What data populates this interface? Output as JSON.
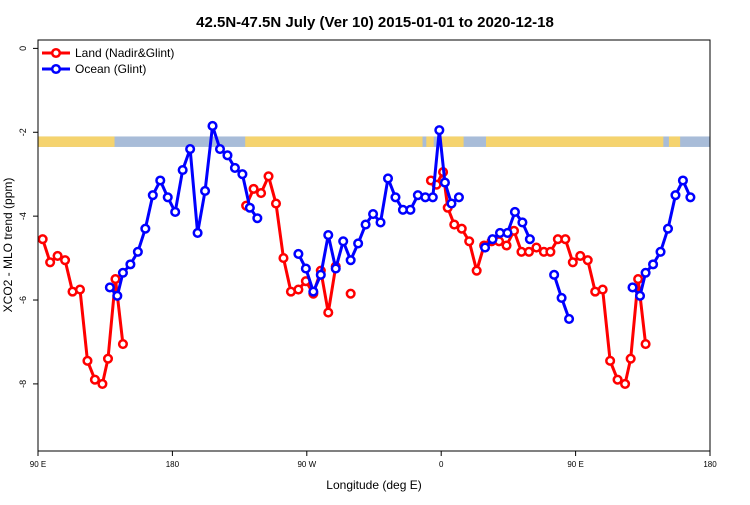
{
  "chart_data": {
    "type": "line",
    "title": "42.5N-47.5N July (Ver 10)   2015-01-01 to 2020-12-18",
    "xlabel": "Longitude (deg E)",
    "ylabel": "XCO2 - MLO trend (ppm)",
    "xlim": [
      90,
      450
    ],
    "ylim": [
      -9.6,
      0.2
    ],
    "grid": false,
    "legend_position": "top-left",
    "x_ticks": [
      {
        "value": 90,
        "label": "90 E"
      },
      {
        "value": 162,
        "label": "180"
      },
      {
        "value": 234,
        "label": "90 W"
      },
      {
        "value": 306,
        "label": "0"
      },
      {
        "value": 378,
        "label": "90 E"
      },
      {
        "value": 450,
        "label": "180"
      }
    ],
    "y_ticks": [
      {
        "value": 0,
        "label": "0"
      },
      {
        "value": -2,
        "label": "-2"
      },
      {
        "value": -4,
        "label": "-4"
      },
      {
        "value": -6,
        "label": "-6"
      },
      {
        "value": -8,
        "label": "-8"
      }
    ],
    "land_mask": {
      "y_top": -2.1,
      "y_bottom": -2.35,
      "land_color": "#f5d36e",
      "ocean_color": "#a8bcd8",
      "land_ranges": [
        [
          90,
          131
        ],
        [
          201,
          296
        ],
        [
          298,
          302
        ],
        [
          306,
          318
        ],
        [
          330,
          425
        ],
        [
          428,
          434
        ]
      ]
    },
    "series": [
      {
        "name": "Land (Nadir&Glint)",
        "color": "#ff0000",
        "segments": [
          [
            [
              92.5,
              -4.55
            ],
            [
              96.5,
              -5.1
            ],
            [
              100.5,
              -4.95
            ],
            [
              104.5,
              -5.05
            ],
            [
              108.5,
              -5.8
            ],
            [
              112.5,
              -5.75
            ],
            [
              116.5,
              -7.45
            ],
            [
              120.5,
              -7.9
            ],
            [
              124.5,
              -8.0
            ],
            [
              127.5,
              -7.4
            ],
            [
              131.5,
              -5.5
            ],
            [
              135.5,
              -7.05
            ]
          ],
          [
            [
              201.5,
              -3.75
            ],
            [
              205.5,
              -3.35
            ],
            [
              209.5,
              -3.45
            ],
            [
              213.5,
              -3.05
            ],
            [
              217.5,
              -3.7
            ],
            [
              221.5,
              -5.0
            ],
            [
              225.5,
              -5.8
            ],
            [
              229.5,
              -5.75
            ],
            [
              233.5,
              -5.55
            ],
            [
              237.5,
              -5.85
            ],
            [
              241.5,
              -5.3
            ],
            [
              245.5,
              -6.3
            ],
            [
              249.5,
              -5.2
            ]
          ],
          [
            [
              257.5,
              -5.85
            ]
          ],
          [
            [
              300.5,
              -3.15
            ],
            [
              303.5,
              -3.25
            ],
            [
              307.0,
              -2.95
            ],
            [
              309.5,
              -3.8
            ],
            [
              313.0,
              -4.2
            ],
            [
              317.0,
              -4.3
            ],
            [
              321.0,
              -4.6
            ],
            [
              325.0,
              -5.3
            ],
            [
              329.0,
              -4.7
            ],
            [
              333.0,
              -4.6
            ],
            [
              337.0,
              -4.6
            ],
            [
              341.0,
              -4.7
            ],
            [
              345.0,
              -4.35
            ],
            [
              349.0,
              -4.85
            ],
            [
              353.0,
              -4.85
            ],
            [
              357.0,
              -4.75
            ],
            [
              361.0,
              -4.85
            ],
            [
              364.5,
              -4.85
            ],
            [
              368.5,
              -4.55
            ],
            [
              372.5,
              -4.55
            ],
            [
              376.5,
              -5.1
            ],
            [
              380.5,
              -4.95
            ],
            [
              384.5,
              -5.05
            ],
            [
              388.5,
              -5.8
            ],
            [
              392.5,
              -5.75
            ],
            [
              396.5,
              -7.45
            ],
            [
              400.5,
              -7.9
            ],
            [
              404.5,
              -8.0
            ],
            [
              407.5,
              -7.4
            ],
            [
              411.5,
              -5.5
            ],
            [
              415.5,
              -7.05
            ]
          ]
        ]
      },
      {
        "name": "Ocean (Glint)",
        "color": "#0000ff",
        "segments": [
          [
            [
              128.5,
              -5.7
            ],
            [
              132.5,
              -5.9
            ],
            [
              135.5,
              -5.35
            ],
            [
              139.5,
              -5.15
            ],
            [
              143.5,
              -4.85
            ],
            [
              147.5,
              -4.3
            ],
            [
              151.5,
              -3.5
            ],
            [
              155.5,
              -3.15
            ],
            [
              159.5,
              -3.55
            ],
            [
              163.5,
              -3.9
            ],
            [
              167.5,
              -2.9
            ],
            [
              171.5,
              -2.4
            ],
            [
              175.5,
              -4.4
            ],
            [
              179.5,
              -3.4
            ],
            [
              183.5,
              -1.85
            ],
            [
              187.5,
              -2.4
            ],
            [
              191.5,
              -2.55
            ],
            [
              195.5,
              -2.85
            ],
            [
              199.5,
              -3.0
            ],
            [
              203.5,
              -3.8
            ],
            [
              207.5,
              -4.05
            ]
          ],
          [
            [
              229.5,
              -4.9
            ],
            [
              233.5,
              -5.25
            ],
            [
              237.5,
              -5.8
            ],
            [
              241.5,
              -5.4
            ],
            [
              245.5,
              -4.45
            ],
            [
              249.5,
              -5.25
            ],
            [
              253.5,
              -4.6
            ],
            [
              257.5,
              -5.05
            ],
            [
              261.5,
              -4.65
            ],
            [
              265.5,
              -4.2
            ],
            [
              269.5,
              -3.95
            ],
            [
              273.5,
              -4.15
            ],
            [
              277.5,
              -3.1
            ],
            [
              281.5,
              -3.55
            ],
            [
              285.5,
              -3.85
            ],
            [
              289.5,
              -3.85
            ],
            [
              293.5,
              -3.5
            ],
            [
              297.5,
              -3.55
            ],
            [
              301.5,
              -3.55
            ],
            [
              305.0,
              -1.95
            ],
            [
              308.0,
              -3.2
            ],
            [
              311.5,
              -3.7
            ],
            [
              315.5,
              -3.55
            ]
          ],
          [
            [
              329.5,
              -4.75
            ],
            [
              333.5,
              -4.55
            ],
            [
              337.5,
              -4.4
            ],
            [
              341.5,
              -4.4
            ],
            [
              345.5,
              -3.9
            ],
            [
              349.5,
              -4.15
            ],
            [
              353.5,
              -4.55
            ]
          ],
          [
            [
              366.5,
              -5.4
            ],
            [
              370.5,
              -5.95
            ],
            [
              374.5,
              -6.45
            ]
          ],
          [
            [
              408.5,
              -5.7
            ],
            [
              412.5,
              -5.9
            ],
            [
              415.5,
              -5.35
            ],
            [
              419.5,
              -5.15
            ],
            [
              423.5,
              -4.85
            ],
            [
              427.5,
              -4.3
            ],
            [
              431.5,
              -3.5
            ],
            [
              435.5,
              -3.15
            ],
            [
              439.5,
              -3.55
            ]
          ]
        ]
      }
    ]
  }
}
